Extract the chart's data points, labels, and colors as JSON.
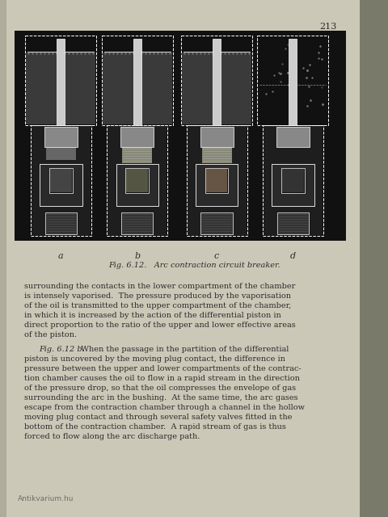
{
  "page_bg": "#ccc8b8",
  "page_number": "213",
  "figure_bg": "#111111",
  "figure_caption": "Fig. 6.12.   Arc contraction circuit breaker.",
  "figure_labels": [
    "a",
    "b",
    "c",
    "d"
  ],
  "paragraph1": "surrounding the contacts in the lower compartment of the chamber\nis intensely vaporised.  The pressure produced by the vaporisation\nof the oil is transmitted to the upper compartment of the chamber,\nin which it is increased by the action of the differential piston in\ndirect proportion to the ratio of the upper and lower effective areas\nof the piston.",
  "paragraph2_italic": "Fig. 6.12 b.",
  "paragraph2_rest": "  When the passage in the partition of the differential\npiston is uncovered by the moving plug contact, the difference in\npressure between the upper and lower compartments of the contrac-\ntion chamber causes the oil to flow in a rapid stream in the direction\nof the pressure drop, so that the oil compresses the envelope of gas\nsurrounding the arc in the bushing.  At the same time, the arc gases\nescape from the contraction chamber through a channel in the hollow\nmoving plug contact and through several safety valves fitted in the\nbottom of the contraction chamber.  A rapid stream of gas is thus\nforced to flow along the arc discharge path.",
  "watermark": "Antikvarium.hu",
  "right_margin_bg": "#888878",
  "left_margin_bg": "#aaa898"
}
